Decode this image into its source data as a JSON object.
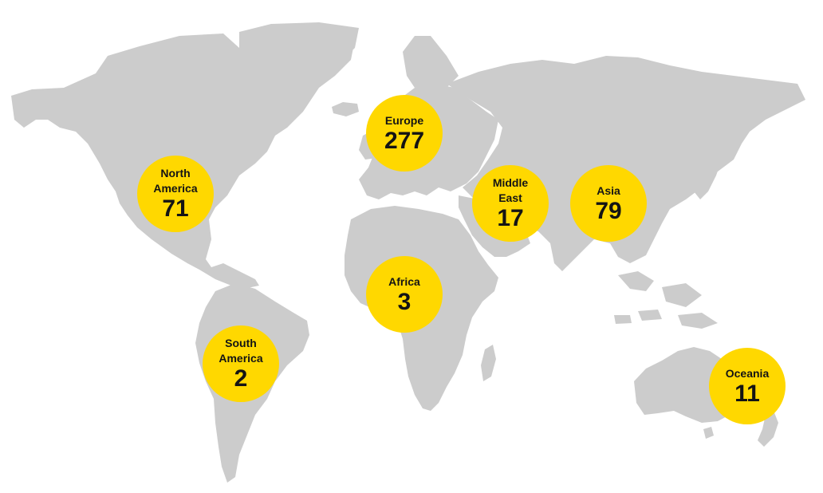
{
  "map": {
    "land_color": "#cccccc",
    "marker_color": "#ffd800",
    "text_color": "#141414"
  },
  "regions": {
    "europe": {
      "name": "Europe",
      "count": "277"
    },
    "north_america": {
      "name": "North\nAmerica",
      "count": "71"
    },
    "middle_east": {
      "name": "Middle\nEast",
      "count": "17"
    },
    "asia": {
      "name": "Asia",
      "count": "79"
    },
    "africa": {
      "name": "Africa",
      "count": "3"
    },
    "south_america": {
      "name": "South\nAmerica",
      "count": "2"
    },
    "oceania": {
      "name": "Oceania",
      "count": "11"
    }
  }
}
